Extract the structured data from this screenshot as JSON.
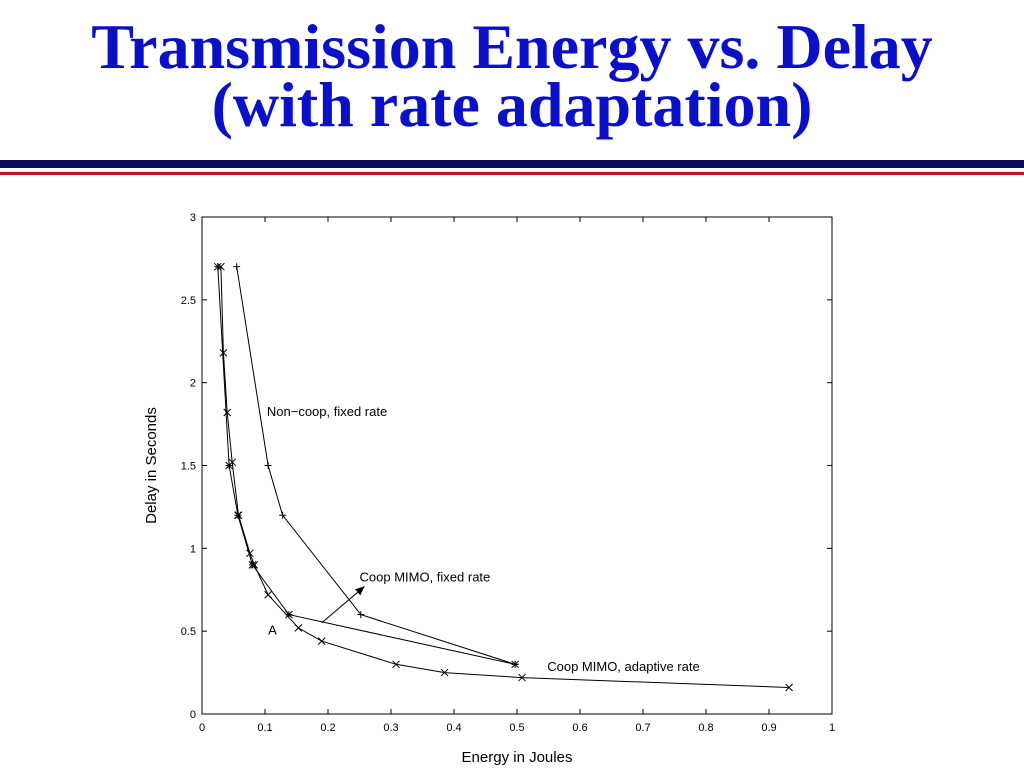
{
  "slide": {
    "title_line1": "Transmission Energy vs. Delay",
    "title_line2": "(with rate adaptation)",
    "colors": {
      "title": "#0a0fc8",
      "rule_top": "#0c0c5e",
      "rule_bottom": "#c0121c"
    }
  },
  "chart_data": {
    "type": "line",
    "xlabel": "Energy in Joules",
    "ylabel": "Delay in Seconds",
    "xlim": [
      0,
      1
    ],
    "ylim": [
      0,
      3
    ],
    "xticks": [
      "0",
      "0.1",
      "0.2",
      "0.3",
      "0.4",
      "0.5",
      "0.6",
      "0.7",
      "0.8",
      "0.9",
      "1"
    ],
    "yticks": [
      "0",
      "0.5",
      "1",
      "1.5",
      "2",
      "2.5",
      "3"
    ],
    "grid": false,
    "series": [
      {
        "name": "Non−coop, fixed rate",
        "marker": "+",
        "points": [
          [
            0.055,
            2.7
          ],
          [
            0.105,
            1.5
          ],
          [
            0.128,
            1.2
          ],
          [
            0.252,
            0.6
          ],
          [
            0.497,
            0.3
          ]
        ]
      },
      {
        "name": "Coop MIMO, fixed rate",
        "marker": "*",
        "points": [
          [
            0.025,
            2.7
          ],
          [
            0.043,
            1.5
          ],
          [
            0.057,
            1.2
          ],
          [
            0.08,
            0.9
          ],
          [
            0.138,
            0.6
          ],
          [
            0.497,
            0.3
          ]
        ]
      },
      {
        "name": "Coop MIMO, adaptive rate",
        "marker": "x",
        "points": [
          [
            0.03,
            2.7
          ],
          [
            0.034,
            2.18
          ],
          [
            0.04,
            1.82
          ],
          [
            0.048,
            1.52
          ],
          [
            0.058,
            1.2
          ],
          [
            0.076,
            0.97
          ],
          [
            0.083,
            0.9
          ],
          [
            0.105,
            0.72
          ],
          [
            0.153,
            0.52
          ],
          [
            0.19,
            0.44
          ],
          [
            0.308,
            0.3
          ],
          [
            0.385,
            0.25
          ],
          [
            0.508,
            0.22
          ],
          [
            0.932,
            0.16
          ]
        ]
      }
    ],
    "annotations": [
      {
        "text": "Non−coop, fixed rate",
        "x": 0.103,
        "y": 1.8
      },
      {
        "text": "Coop MIMO, fixed rate",
        "x": 0.25,
        "y": 0.8
      },
      {
        "text": "Coop MIMO, adaptive rate",
        "x": 0.548,
        "y": 0.26
      },
      {
        "text": "A",
        "x": 0.105,
        "y": 0.48
      }
    ],
    "arrow": {
      "from": [
        0.19,
        0.55
      ],
      "to": [
        0.258,
        0.77
      ]
    },
    "colors": {
      "line": "#000000",
      "axes": "#000000",
      "background": "#ffffff"
    }
  }
}
